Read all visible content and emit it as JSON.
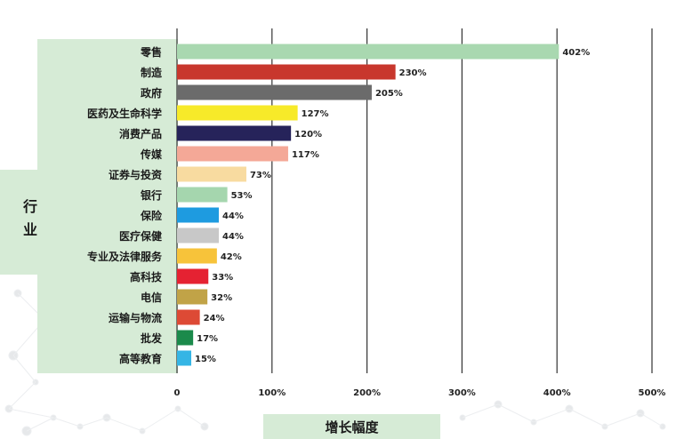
{
  "chart_data": {
    "type": "bar",
    "orientation": "horizontal",
    "ylabel": "行业",
    "xlabel": "增长幅度",
    "xlim": [
      0,
      500
    ],
    "xticks": [
      "0",
      "100%",
      "200%",
      "300%",
      "400%",
      "500%"
    ],
    "grid": true,
    "categories": [
      "零售",
      "制造",
      "政府",
      "医药及生命科学",
      "消费产品",
      "传媒",
      "证券与投资",
      "银行",
      "保险",
      "医疗保健",
      "专业及法律服务",
      "高科技",
      "电信",
      "运输与物流",
      "批发",
      "高等教育"
    ],
    "values": [
      402,
      230,
      205,
      127,
      120,
      117,
      73,
      53,
      44,
      44,
      42,
      33,
      32,
      24,
      17,
      15
    ],
    "value_labels": [
      "402%",
      "230%",
      "205%",
      "127%",
      "120%",
      "117%",
      "73%",
      "53%",
      "44%",
      "44%",
      "42%",
      "33%",
      "32%",
      "24%",
      "17%",
      "15%"
    ],
    "colors": [
      "#a9d8b0",
      "#c8372d",
      "#6b6b6b",
      "#f7ea29",
      "#26235a",
      "#f4a897",
      "#f8dba0",
      "#a5d6ae",
      "#1e9be0",
      "#c8c8c8",
      "#f7c33a",
      "#e52232",
      "#c1a347",
      "#dd4a35",
      "#1b8a4b",
      "#35b5e5"
    ]
  }
}
